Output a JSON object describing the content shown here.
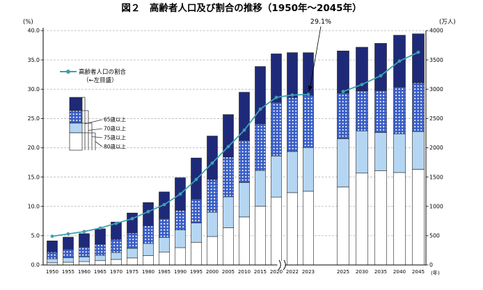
{
  "title": "図２　高齢者人口及び割合の推移（1950年～2045年）",
  "annotation": {
    "label": "29.1%",
    "target_year": "2023"
  },
  "axes": {
    "left_unit": "(%)",
    "right_unit": "(万人)",
    "x_unit": "(年)",
    "left_ticks": [
      "0.0",
      "5.0",
      "10.0",
      "15.0",
      "20.0",
      "25.0",
      "30.0",
      "35.0",
      "40.0"
    ],
    "right_ticks": [
      "0",
      "500",
      "1000",
      "1500",
      "2000",
      "2500",
      "3000",
      "3500",
      "4000"
    ]
  },
  "legend": {
    "line_label": "高齢者人口の割合",
    "line_sublabel": "（←左目盛）",
    "bar_labels": [
      "65歳以上",
      "70歳以上",
      "75歳以上",
      "80歳以上"
    ]
  },
  "colors": {
    "navy": "#1e2a78",
    "dotted_base": "#3a5ec6",
    "dotted_dot": "#ffffff",
    "lightblue": "#b5d6f2",
    "white": "#ffffff",
    "line": "#3fa0af",
    "grid": "#b0b0b0",
    "axis": "#000000",
    "bar_outline": "#222222"
  },
  "chart_data": {
    "type": "bar",
    "note": "stacked bars on right axis (万人) with percentage line on left axis (%)",
    "title": "高齢者人口及び割合の推移（1950年～2045年）",
    "categories": [
      "1950",
      "1955",
      "1960",
      "1965",
      "1970",
      "1975",
      "1980",
      "1985",
      "1990",
      "1995",
      "2000",
      "2005",
      "2010",
      "2015",
      "2020",
      "2022",
      "2023",
      "2025",
      "2030",
      "2035",
      "2040",
      "2045"
    ],
    "series": [
      {
        "name": "80歳以上",
        "color_key": "white",
        "values": [
          37,
          47,
          58,
          74,
          95,
          120,
          162,
          222,
          296,
          388,
          486,
          635,
          820,
          1002,
          1160,
          1235,
          1259,
          1331,
          1569,
          1607,
          1578,
          1632
        ]
      },
      {
        "name": "75歳以上",
        "color_key": "lightblue",
        "values": [
          69,
          75,
          81,
          90,
          117,
          164,
          204,
          249,
          301,
          329,
          414,
          529,
          587,
          611,
          700,
          701,
          746,
          824,
          719,
          653,
          661,
          645
        ]
      },
      {
        "name": "70歳以上",
        "color_key": "dotted",
        "values": [
          118,
          148,
          169,
          192,
          225,
          264,
          306,
          321,
          336,
          409,
          561,
          680,
          721,
          798,
          919,
          923,
          888,
          781,
          685,
          717,
          801,
          834
        ]
      },
      {
        "name": "65歳以上",
        "color_key": "navy",
        "values": [
          187,
          205,
          227,
          262,
          296,
          339,
          393,
          455,
          556,
          700,
          740,
          723,
          820,
          976,
          824,
          765,
          730,
          717,
          743,
          805,
          881,
          834
        ]
      }
    ],
    "line_series": {
      "name": "高齢者人口の割合",
      "axis": "left",
      "values": [
        4.9,
        5.3,
        5.7,
        6.3,
        7.1,
        7.9,
        9.1,
        10.3,
        12.1,
        14.6,
        17.4,
        20.2,
        23.0,
        26.6,
        28.6,
        29.0,
        29.1,
        29.6,
        30.8,
        32.3,
        34.8,
        36.3
      ]
    },
    "ylim_left": [
      0,
      40
    ],
    "ylim_right": [
      0,
      4000
    ],
    "x_break_between": [
      "2020",
      "2022"
    ],
    "panel_gap_between": [
      "2023",
      "2025"
    ],
    "legend_position": "upper-left-inside",
    "grid": "horizontal-dashed"
  }
}
